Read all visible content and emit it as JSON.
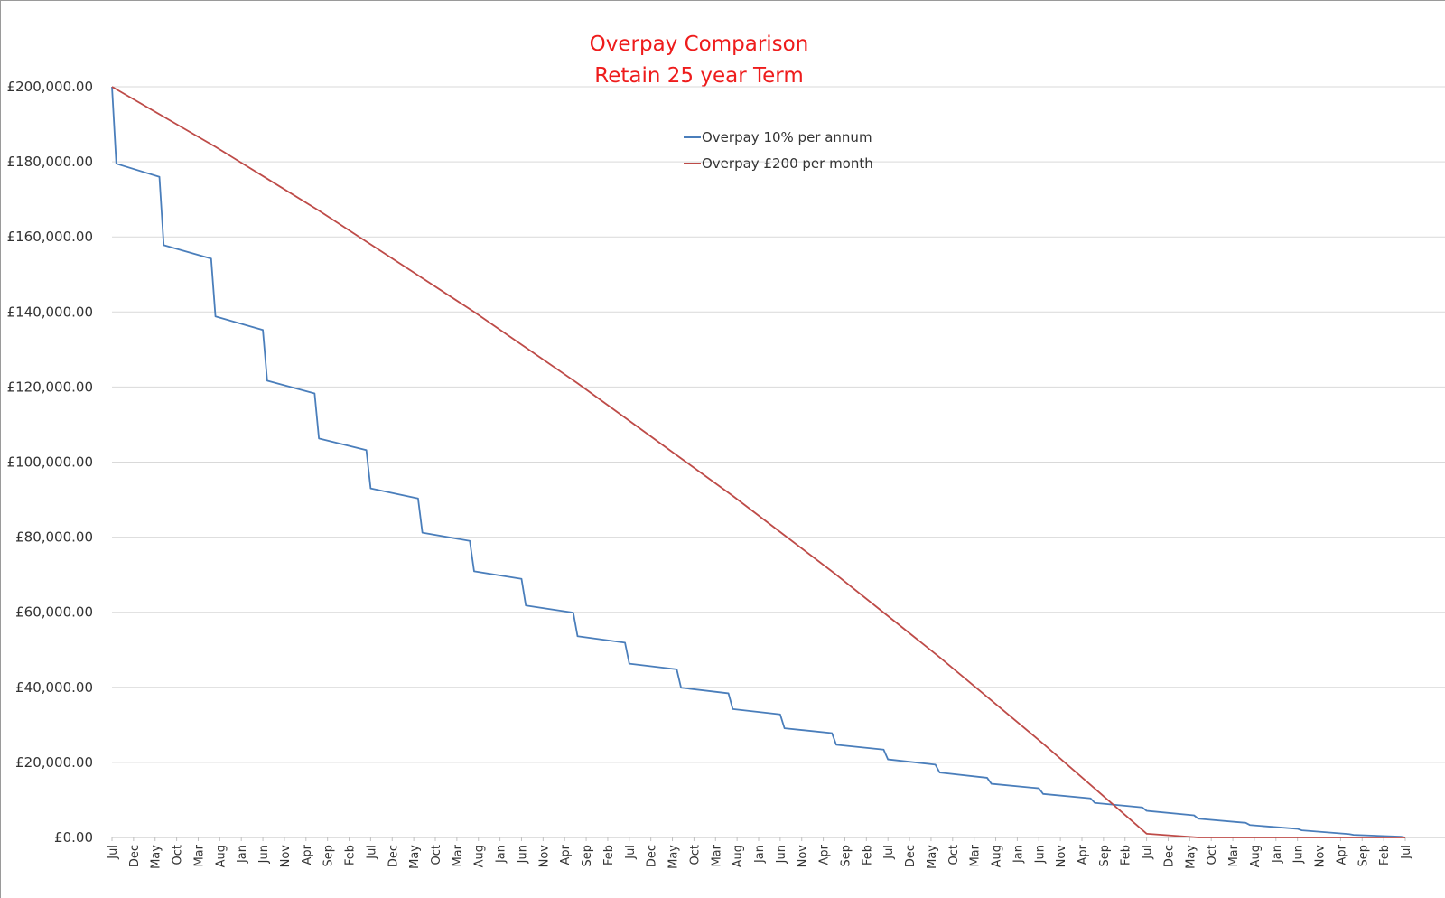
{
  "chart_data": {
    "type": "line",
    "title": "Overpay Comparison",
    "subtitle": "Retain 25 year Term",
    "xlabel": "",
    "ylabel": "",
    "ylim": [
      0,
      200000
    ],
    "y_ticks": [
      "£200,000.00",
      "£180,000.00",
      "£160,000.00",
      "£140,000.00",
      "£120,000.00",
      "£100,000.00",
      "£80,000.00",
      "£60,000.00",
      "£40,000.00",
      "£20,000.00",
      "£0.00"
    ],
    "x_tick_labels": [
      "Jul",
      "Dec",
      "May",
      "Oct",
      "Mar",
      "Aug",
      "Jan",
      "Jun",
      "Nov",
      "Apr",
      "Sep",
      "Feb",
      "Jul",
      "Dec",
      "May",
      "Oct",
      "Mar",
      "Aug",
      "Jan",
      "Jun",
      "Nov",
      "Apr",
      "Sep",
      "Feb",
      "Jul",
      "Dec",
      "May",
      "Oct",
      "Mar",
      "Aug",
      "Jan",
      "Jun",
      "Nov",
      "Apr",
      "Sep",
      "Feb",
      "Jul",
      "Dec",
      "May",
      "Oct",
      "Mar",
      "Aug",
      "Jan",
      "Jun",
      "Nov",
      "Apr",
      "Sep",
      "Feb",
      "Jul",
      "Dec",
      "May",
      "Oct",
      "Mar",
      "Aug",
      "Jan",
      "Jun",
      "Nov",
      "Apr",
      "Sep",
      "Feb",
      "Jul"
    ],
    "legend_position": "top-center",
    "grid": "horizontal",
    "series": [
      {
        "name": "Overpay 10% per annum",
        "color": "#4a7ebb",
        "month_index": [
          0,
          1,
          11,
          12,
          23,
          24,
          35,
          36,
          47,
          48,
          59,
          60,
          71,
          72,
          83,
          84,
          95,
          96,
          107,
          108,
          119,
          120,
          131,
          132,
          143,
          144,
          155,
          156,
          167,
          168,
          179,
          180,
          191,
          192,
          203,
          204,
          215,
          216,
          227,
          228,
          239,
          240,
          251,
          252,
          263,
          264,
          275,
          276,
          287,
          288,
          299,
          300
        ],
        "values": [
          200000,
          179500,
          176000,
          157800,
          154200,
          138800,
          135200,
          121700,
          118300,
          106300,
          103200,
          93000,
          90300,
          81200,
          79000,
          70900,
          68900,
          61800,
          59900,
          53600,
          51900,
          46300,
          44800,
          39900,
          38400,
          34200,
          32800,
          29100,
          27800,
          24700,
          23400,
          20800,
          19400,
          17300,
          15900,
          14300,
          13100,
          11600,
          10400,
          9200,
          8000,
          7100,
          5900,
          5000,
          3900,
          3300,
          2300,
          1900,
          900,
          700,
          200,
          0
        ]
      },
      {
        "name": "Overpay £200 per month",
        "color": "#be4b48",
        "month_index": [
          0,
          12,
          24,
          36,
          48,
          60,
          72,
          84,
          96,
          108,
          120,
          132,
          144,
          156,
          168,
          180,
          192,
          204,
          216,
          228,
          240,
          252,
          264,
          276,
          288,
          300
        ],
        "values": [
          200000,
          192000,
          184000,
          175500,
          167000,
          158000,
          149000,
          140000,
          130500,
          121000,
          111000,
          101000,
          91000,
          80500,
          70000,
          59000,
          48000,
          36500,
          25000,
          13000,
          1000,
          0,
          0,
          0,
          0,
          0
        ]
      }
    ]
  }
}
